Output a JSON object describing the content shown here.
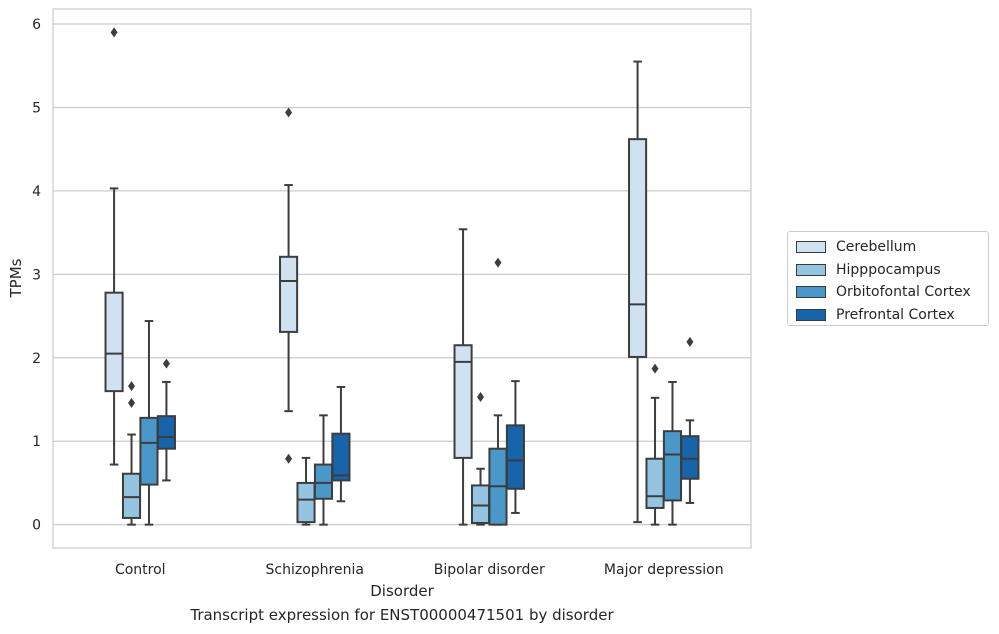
{
  "chart_data": {
    "type": "boxplot",
    "title": "",
    "xlabel": "Disorder",
    "ylabel": "TPMs",
    "caption": "Transcript expression for ENST00000471501 by disorder",
    "ylim": [
      -0.28,
      6.18
    ],
    "yticks": [
      "0",
      "1",
      "2",
      "3",
      "4",
      "5",
      "6"
    ],
    "categories": [
      "Control",
      "Schizophrenia",
      "Bipolar disorder",
      "Major depression"
    ],
    "grid": true,
    "legend_position": "right",
    "series": [
      {
        "name": "Cerebellum",
        "color": "#d0e1f2",
        "boxes": [
          {
            "whislo": 0.72,
            "q1": 1.6,
            "med": 2.05,
            "q3": 2.78,
            "whishi": 4.03,
            "fliers": [
              5.9
            ]
          },
          {
            "whislo": 1.36,
            "q1": 2.31,
            "med": 2.92,
            "q3": 3.21,
            "whishi": 4.07,
            "fliers": [
              4.94,
              0.79
            ]
          },
          {
            "whislo": 0.0,
            "q1": 0.8,
            "med": 1.95,
            "q3": 2.15,
            "whishi": 3.54,
            "fliers": []
          },
          {
            "whislo": 0.03,
            "q1": 2.01,
            "med": 2.64,
            "q3": 4.62,
            "whishi": 5.55,
            "fliers": []
          }
        ]
      },
      {
        "name": "Hipppocampus",
        "color": "#94c4df",
        "boxes": [
          {
            "whislo": 0.0,
            "q1": 0.08,
            "med": 0.33,
            "q3": 0.61,
            "whishi": 1.08,
            "fliers": [
              1.66,
              1.46
            ]
          },
          {
            "whislo": 0.0,
            "q1": 0.03,
            "med": 0.3,
            "q3": 0.5,
            "whishi": 0.8,
            "fliers": []
          },
          {
            "whislo": 0.0,
            "q1": 0.02,
            "med": 0.23,
            "q3": 0.47,
            "whishi": 0.67,
            "fliers": [
              1.53
            ]
          },
          {
            "whislo": 0.0,
            "q1": 0.2,
            "med": 0.34,
            "q3": 0.79,
            "whishi": 1.52,
            "fliers": [
              1.87
            ]
          }
        ]
      },
      {
        "name": "Orbitofontal Cortex",
        "color": "#4a98c9",
        "boxes": [
          {
            "whislo": 0.0,
            "q1": 0.48,
            "med": 0.98,
            "q3": 1.28,
            "whishi": 2.44,
            "fliers": []
          },
          {
            "whislo": 0.0,
            "q1": 0.31,
            "med": 0.5,
            "q3": 0.72,
            "whishi": 1.31,
            "fliers": []
          },
          {
            "whislo": 0.0,
            "q1": 0.0,
            "med": 0.46,
            "q3": 0.91,
            "whishi": 1.31,
            "fliers": [
              3.14
            ]
          },
          {
            "whislo": 0.0,
            "q1": 0.29,
            "med": 0.84,
            "q3": 1.12,
            "whishi": 1.71,
            "fliers": []
          }
        ]
      },
      {
        "name": "Prefrontal Cortex",
        "color": "#1764ab",
        "boxes": [
          {
            "whislo": 0.53,
            "q1": 0.91,
            "med": 1.05,
            "q3": 1.3,
            "whishi": 1.71,
            "fliers": [
              1.93
            ]
          },
          {
            "whislo": 0.28,
            "q1": 0.53,
            "med": 0.59,
            "q3": 1.09,
            "whishi": 1.65,
            "fliers": []
          },
          {
            "whislo": 0.14,
            "q1": 0.43,
            "med": 0.77,
            "q3": 1.19,
            "whishi": 1.72,
            "fliers": []
          },
          {
            "whislo": 0.26,
            "q1": 0.55,
            "med": 0.79,
            "q3": 1.06,
            "whishi": 1.25,
            "fliers": [
              2.19
            ]
          }
        ]
      }
    ]
  }
}
